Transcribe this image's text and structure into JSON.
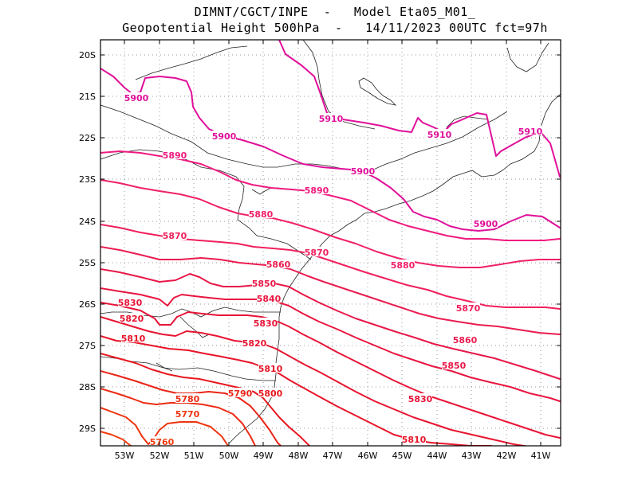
{
  "title": {
    "line1": "DIMNT/CGCT/INPE  -   Model Eta05_M01_",
    "line2": "Geopotential Height 500hPa  -   14/11/2023 00UTC fct=97h"
  },
  "axes": {
    "lat_labels": [
      "20S",
      "21S",
      "22S",
      "23S",
      "24S",
      "25S",
      "26S",
      "27S",
      "28S",
      "29S"
    ],
    "lon_labels": [
      "53W",
      "52W",
      "51W",
      "50W",
      "49W",
      "48W",
      "47W",
      "46W",
      "45W",
      "44W",
      "43W",
      "42W",
      "41W"
    ]
  },
  "colors": {
    "magenta": "#e0109a",
    "pink": "#f0206a",
    "crimson": "#e01438",
    "red": "#e81818",
    "orange_red": "#ee3a10",
    "coast": "#222222",
    "grid": "#999999"
  },
  "contours": [
    {
      "label": "5910",
      "color": "#e0109a",
      "labels_at": [
        "5910",
        "5910",
        "5910"
      ]
    },
    {
      "label": "5900",
      "color": "#e0109a",
      "labels_at": [
        "5900",
        "5900",
        "5900",
        "5900"
      ]
    },
    {
      "label": "5890",
      "color": "#f01a80",
      "labels_at": [
        "5890",
        "5890"
      ]
    },
    {
      "label": "5880",
      "color": "#f0206a",
      "labels_at": [
        "5880",
        "5880"
      ]
    },
    {
      "label": "5870",
      "color": "#f0205c",
      "labels_at": [
        "5870",
        "5870",
        "5870"
      ]
    },
    {
      "label": "5860",
      "color": "#ea1c50",
      "labels_at": [
        "5860",
        "5860"
      ]
    },
    {
      "label": "5850",
      "color": "#e81848",
      "labels_at": [
        "5850",
        "5850"
      ]
    },
    {
      "label": "5840",
      "color": "#e81640",
      "labels_at": [
        "5840"
      ]
    },
    {
      "label": "5830",
      "color": "#e81438",
      "labels_at": [
        "5830",
        "5830",
        "5830"
      ]
    },
    {
      "label": "5820",
      "color": "#e81430",
      "labels_at": [
        "5820",
        "5820"
      ]
    },
    {
      "label": "5810",
      "color": "#e81428",
      "labels_at": [
        "5810",
        "5810",
        "5810"
      ]
    },
    {
      "label": "5800",
      "color": "#e81820",
      "labels_at": [
        "5800"
      ]
    },
    {
      "label": "5790",
      "color": "#ea2418",
      "labels_at": [
        "5790"
      ]
    },
    {
      "label": "5780",
      "color": "#ec2c14",
      "labels_at": [
        "5780"
      ]
    },
    {
      "label": "5770",
      "color": "#ee3410",
      "labels_at": [
        "5770"
      ]
    },
    {
      "label": "5760",
      "color": "#f03c0c",
      "labels_at": [
        "5760"
      ]
    }
  ]
}
